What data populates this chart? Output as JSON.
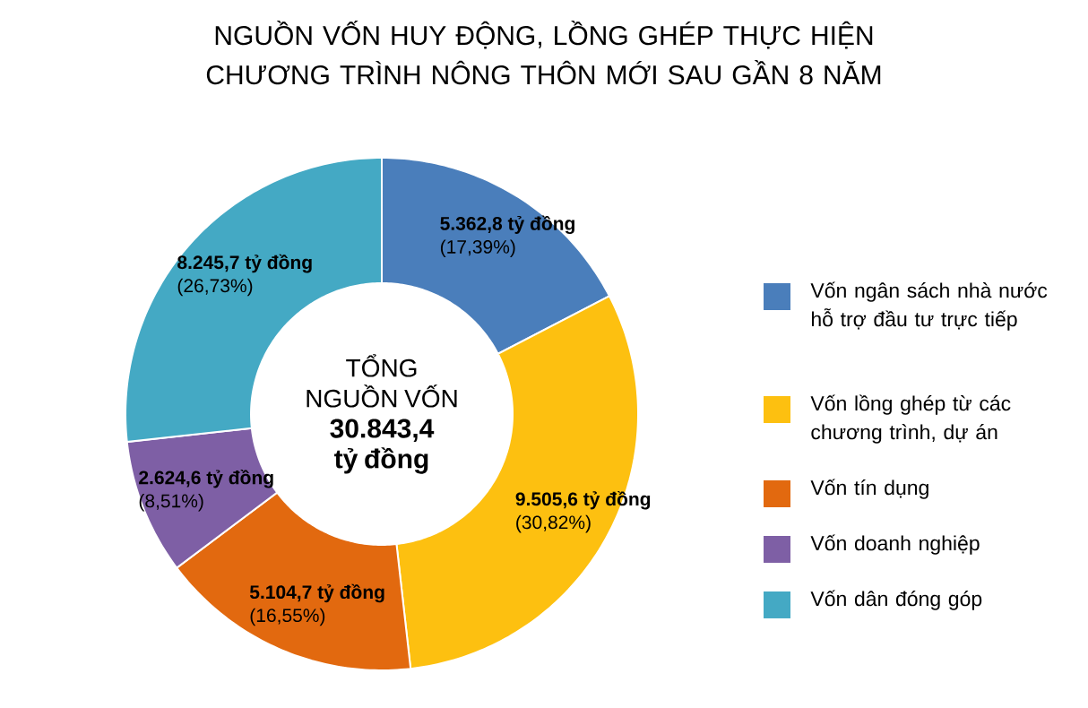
{
  "chart_data": {
    "type": "donut",
    "title": "NGUỒN VỐN HUY ĐỘNG, LỒNG GHÉP THỰC HIỆN CHƯƠNG TRÌNH NÔNG THÔN MỚI SAU GẦN 8 NĂM",
    "categories": [
      "Vốn ngân sách nhà nước hỗ trợ đầu tư trực tiếp",
      "Vốn lồng ghép từ các chương trình, dự án",
      "Vốn tín dụng",
      "Vốn doanh nghiệp",
      "Vốn dân đóng góp"
    ],
    "values": [
      5362.8,
      9505.6,
      5104.7,
      2624.6,
      8245.7
    ],
    "colors": [
      "#4a7ebb",
      "#fdc010",
      "#e2690f",
      "#7e5fa5",
      "#44a9c4"
    ],
    "value_labels": [
      "5.362,8 tỷ đồng",
      "9.505,6 tỷ đồng",
      "5.104,7 tỷ đồng",
      "2.624,6 tỷ đồng",
      "8.245,7 tỷ đồng"
    ],
    "annotations": [
      "(17,39%)",
      "(30,82%)",
      "(16,55%)",
      "(8,51%)",
      "(26,73%)",
      "TỔNG NGUỒN VỐN",
      "30.843,4 tỷ đồng"
    ],
    "legend": "right"
  }
}
